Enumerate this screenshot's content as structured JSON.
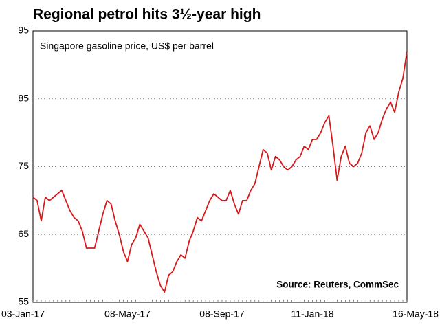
{
  "chart_data": {
    "type": "line",
    "title": "Regional petrol hits 3½-year high",
    "subtitle": "Singapore gasoline price, US$ per barrel",
    "source": "Source: Reuters, CommSec",
    "color": "#d7191c",
    "ylim": [
      55,
      95
    ],
    "yticks": [
      55,
      65,
      75,
      85,
      95
    ],
    "grid": true,
    "categories": [
      "03-Jan-17",
      null,
      null,
      null,
      null,
      null,
      null,
      null,
      null,
      null,
      null,
      null,
      null,
      null,
      null,
      null,
      null,
      null,
      null,
      null,
      null,
      null,
      null,
      "08-May-17",
      null,
      null,
      null,
      null,
      null,
      null,
      null,
      null,
      null,
      null,
      null,
      null,
      null,
      null,
      null,
      null,
      null,
      null,
      null,
      null,
      null,
      null,
      "08-Sep-17",
      null,
      null,
      null,
      null,
      null,
      null,
      null,
      null,
      null,
      null,
      null,
      null,
      null,
      null,
      null,
      null,
      null,
      null,
      null,
      null,
      null,
      "11-Jan-18",
      null,
      null,
      null,
      null,
      null,
      null,
      null,
      null,
      null,
      null,
      null,
      null,
      null,
      null,
      null,
      null,
      null,
      null,
      null,
      null,
      null,
      null,
      "16-May-18"
    ],
    "values": [
      70.5,
      70,
      67,
      70.5,
      70,
      70.5,
      71,
      71.5,
      70,
      68.5,
      67.5,
      67,
      65.5,
      63,
      63,
      63,
      65.5,
      68,
      70,
      69.5,
      67,
      65,
      62.5,
      61,
      63.5,
      64.5,
      66.5,
      65.5,
      64.5,
      62,
      59.5,
      57.5,
      56.5,
      59,
      59.5,
      61,
      62,
      61.5,
      64,
      65.5,
      67.5,
      67,
      68.5,
      70,
      71,
      70.5,
      70,
      70,
      71.5,
      69.5,
      68,
      70,
      70,
      71.5,
      72.5,
      75,
      77.5,
      77,
      74.5,
      76.5,
      76,
      75,
      74.5,
      75,
      76,
      76.5,
      78,
      77.5,
      79,
      79,
      80,
      81.5,
      82.5,
      78,
      73,
      76.5,
      78,
      75.5,
      75,
      75.5,
      77,
      80,
      81,
      79,
      80,
      82,
      83.5,
      84.5,
      83,
      86,
      88,
      92
    ]
  }
}
